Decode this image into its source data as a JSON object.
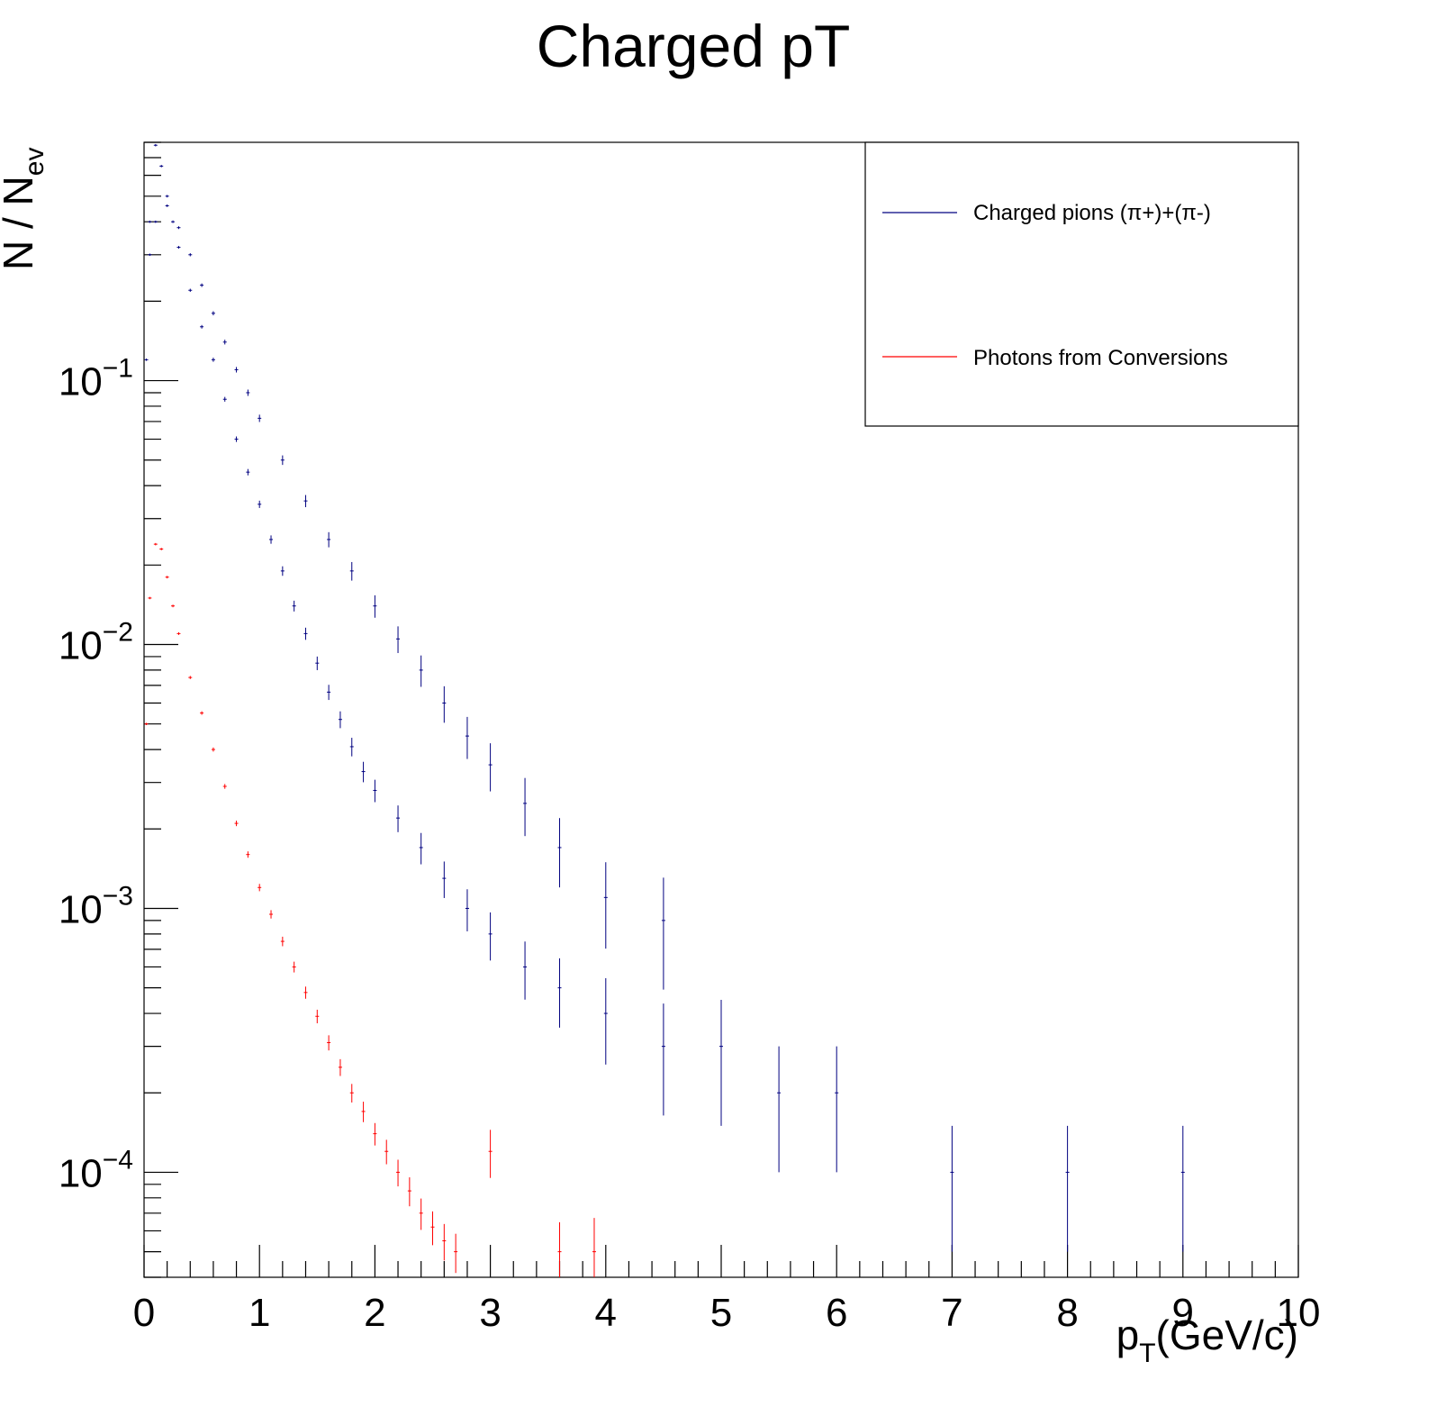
{
  "chart_data": {
    "type": "scatter",
    "title": "Charged pT",
    "xlabel": {
      "main": "p",
      "sub": "T",
      "rest": "(GeV/c)"
    },
    "ylabel": {
      "main": "N / N",
      "sub": "ev"
    },
    "xlim": [
      0,
      10
    ],
    "ylim": [
      4e-05,
      0.8
    ],
    "y_scale": "log",
    "grid": false,
    "legend_position": "top-right",
    "x_ticks": [
      "0",
      "1",
      "2",
      "3",
      "4",
      "5",
      "6",
      "7",
      "8",
      "9",
      "10"
    ],
    "y_ticks": [
      {
        "value": 0.1,
        "base": "10",
        "exp": "−1"
      },
      {
        "value": 0.01,
        "base": "10",
        "exp": "−2"
      },
      {
        "value": 0.001,
        "base": "10",
        "exp": "−3"
      },
      {
        "value": 0.0001,
        "base": "10",
        "exp": "−4"
      }
    ],
    "series": [
      {
        "name": "Charged pions (π+)+(π-)",
        "color": "#000080",
        "points": [
          [
            0.02,
            0.12
          ],
          [
            0.05,
            0.4
          ],
          [
            0.1,
            0.78
          ],
          [
            0.15,
            0.65
          ],
          [
            0.2,
            0.5
          ],
          [
            0.25,
            0.4
          ],
          [
            0.3,
            0.32
          ],
          [
            0.4,
            0.22
          ],
          [
            0.5,
            0.16
          ],
          [
            0.6,
            0.12
          ],
          [
            0.7,
            0.085
          ],
          [
            0.8,
            0.06
          ],
          [
            0.9,
            0.045
          ],
          [
            1.0,
            0.034
          ],
          [
            1.1,
            0.025
          ],
          [
            1.2,
            0.019
          ],
          [
            1.3,
            0.014
          ],
          [
            1.4,
            0.011
          ],
          [
            1.5,
            0.0085
          ],
          [
            1.6,
            0.0066
          ],
          [
            1.7,
            0.0052
          ],
          [
            1.8,
            0.0041
          ],
          [
            1.9,
            0.0033
          ],
          [
            2.0,
            0.0028
          ],
          [
            2.2,
            0.0022
          ],
          [
            2.4,
            0.0017
          ],
          [
            2.6,
            0.0013
          ],
          [
            2.8,
            0.001
          ],
          [
            3.0,
            0.0008
          ],
          [
            3.3,
            0.0006
          ],
          [
            3.6,
            0.0005
          ],
          [
            4.0,
            0.0004
          ],
          [
            4.5,
            0.0003
          ],
          [
            5.0,
            0.0003
          ],
          [
            5.5,
            0.0002
          ],
          [
            6.0,
            0.0002
          ],
          [
            7.0,
            0.0001
          ],
          [
            8.0,
            0.0001
          ],
          [
            9.0,
            0.0001
          ]
        ],
        "points_upper": [
          [
            0.05,
            0.3
          ],
          [
            0.1,
            0.4
          ],
          [
            0.2,
            0.46
          ],
          [
            0.3,
            0.38
          ],
          [
            0.4,
            0.3
          ],
          [
            0.5,
            0.23
          ],
          [
            0.6,
            0.18
          ],
          [
            0.7,
            0.14
          ],
          [
            0.8,
            0.11
          ],
          [
            0.9,
            0.09
          ],
          [
            1.0,
            0.072
          ],
          [
            1.2,
            0.05
          ],
          [
            1.4,
            0.035
          ],
          [
            1.6,
            0.025
          ],
          [
            1.8,
            0.019
          ],
          [
            2.0,
            0.014
          ],
          [
            2.2,
            0.0105
          ],
          [
            2.4,
            0.008
          ],
          [
            2.6,
            0.006
          ],
          [
            2.8,
            0.0045
          ],
          [
            3.0,
            0.0035
          ],
          [
            3.3,
            0.0025
          ],
          [
            3.6,
            0.0017
          ],
          [
            4.0,
            0.0011
          ],
          [
            4.5,
            0.0009
          ]
        ]
      },
      {
        "name": "Photons from Conversions",
        "color": "#ff0000",
        "points": [
          [
            0.02,
            0.005
          ],
          [
            0.05,
            0.015
          ],
          [
            0.1,
            0.024
          ],
          [
            0.15,
            0.023
          ],
          [
            0.2,
            0.018
          ],
          [
            0.25,
            0.014
          ],
          [
            0.3,
            0.011
          ],
          [
            0.4,
            0.0075
          ],
          [
            0.5,
            0.0055
          ],
          [
            0.6,
            0.004
          ],
          [
            0.7,
            0.0029
          ],
          [
            0.8,
            0.0021
          ],
          [
            0.9,
            0.0016
          ],
          [
            1.0,
            0.0012
          ],
          [
            1.1,
            0.00095
          ],
          [
            1.2,
            0.00075
          ],
          [
            1.3,
            0.0006
          ],
          [
            1.4,
            0.00048
          ],
          [
            1.5,
            0.00039
          ],
          [
            1.6,
            0.00031
          ],
          [
            1.7,
            0.00025
          ],
          [
            1.8,
            0.0002
          ],
          [
            1.9,
            0.00017
          ],
          [
            2.0,
            0.00014
          ],
          [
            2.1,
            0.00012
          ],
          [
            2.2,
            0.0001
          ],
          [
            2.3,
            8.5e-05
          ],
          [
            2.4,
            7e-05
          ],
          [
            2.5,
            6.2e-05
          ],
          [
            2.6,
            5.5e-05
          ],
          [
            2.7,
            5e-05
          ],
          [
            3.0,
            0.00012
          ],
          [
            3.6,
            5e-05
          ],
          [
            3.9,
            5e-05
          ]
        ]
      }
    ],
    "legend": [
      "Charged pions (π+)+(π-)",
      "Photons from Conversions"
    ]
  }
}
